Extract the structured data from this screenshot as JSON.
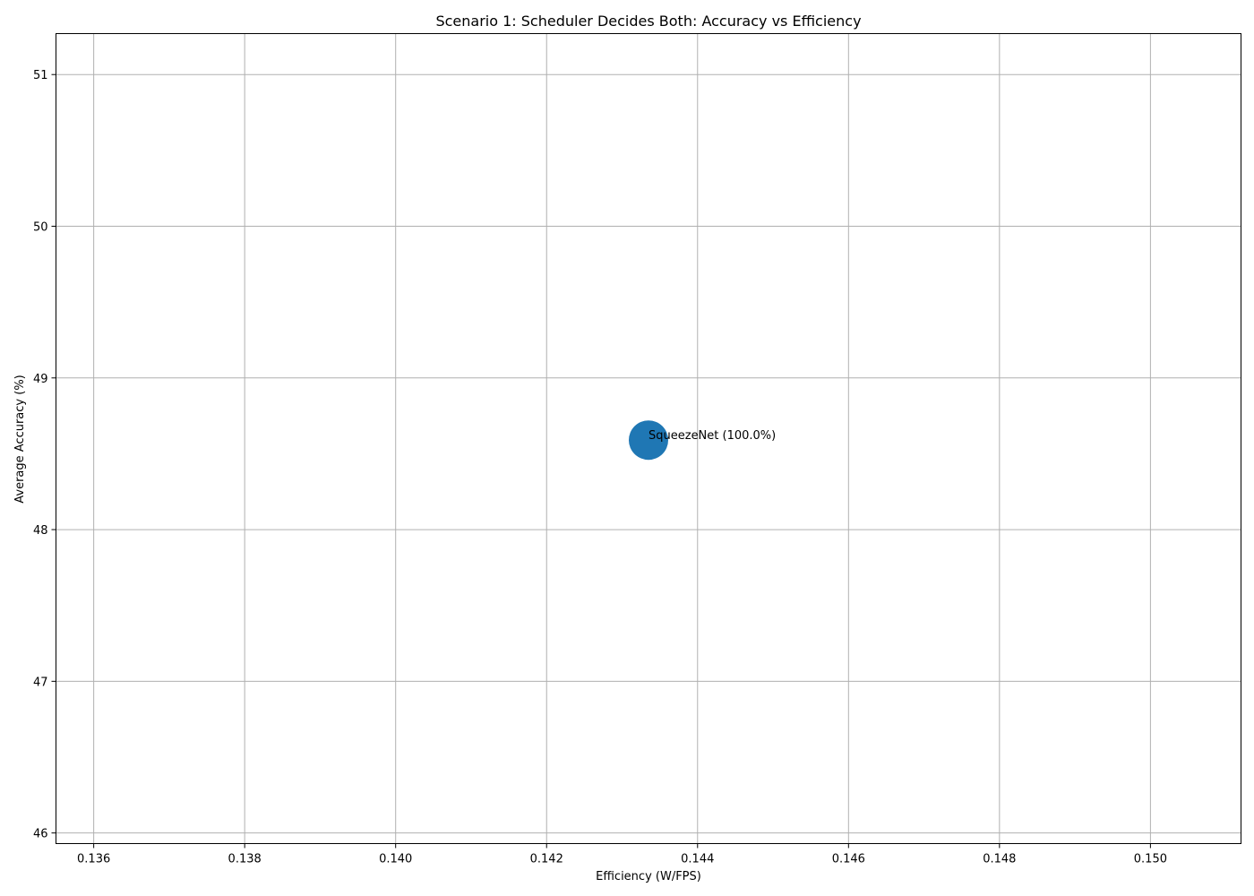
{
  "chart_data": {
    "type": "scatter",
    "title": "Scenario 1: Scheduler Decides Both: Accuracy vs Efficiency",
    "xlabel": "Efficiency (W/FPS)",
    "ylabel": "Average Accuracy (%)",
    "xlim": [
      0.1355,
      0.1512
    ],
    "ylim": [
      45.93,
      51.27
    ],
    "x_ticks": [
      0.136,
      0.138,
      0.14,
      0.142,
      0.144,
      0.146,
      0.148,
      0.15
    ],
    "x_tick_labels": [
      "0.136",
      "0.138",
      "0.140",
      "0.142",
      "0.144",
      "0.146",
      "0.148",
      "0.150"
    ],
    "y_ticks": [
      46,
      47,
      48,
      49,
      50,
      51
    ],
    "y_tick_labels": [
      "46",
      "47",
      "48",
      "49",
      "50",
      "51"
    ],
    "grid": true,
    "points": [
      {
        "x": 0.14335,
        "y": 48.59,
        "label": "SqueezeNet (100.0%)",
        "share": 100.0,
        "color": "#1f77b4"
      }
    ]
  }
}
